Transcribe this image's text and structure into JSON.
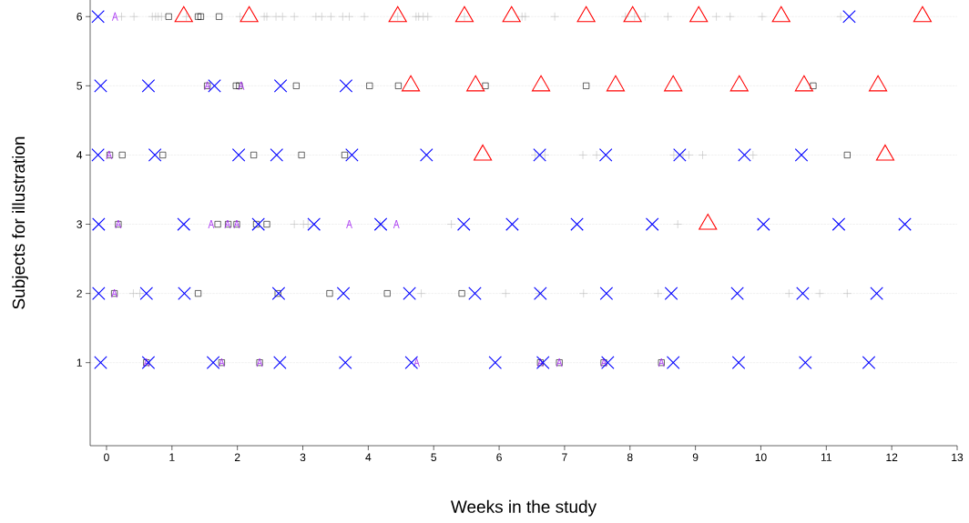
{
  "chart_data": {
    "type": "scatter",
    "xlabel": "Weeks in the study",
    "ylabel": "Subjects for illustration",
    "xlim": [
      -0.25,
      13
    ],
    "xticks": [
      0,
      1,
      2,
      3,
      4,
      5,
      6,
      7,
      8,
      9,
      10,
      11,
      12,
      13
    ],
    "ylim": [
      -0.2,
      6.24
    ],
    "yticks": [
      1,
      2,
      3,
      4,
      5,
      6
    ],
    "grid": "y",
    "series": [
      {
        "color": "#bebebe",
        "marker": "plus",
        "x": [
          0.23,
          0.42,
          0.7,
          0.75,
          0.79,
          0.84,
          1.22,
          2.04,
          2.41,
          2.45,
          2.59,
          2.69,
          2.87,
          3.2,
          3.29,
          3.43,
          3.61,
          3.71,
          3.94,
          4.45,
          4.73,
          4.77,
          4.84,
          4.91,
          5.47,
          6.35,
          6.4,
          6.85,
          7.93,
          8.07,
          8.23,
          8.58,
          9.32,
          9.53,
          10.02,
          11.22,
          6.55,
          6.7,
          7.28,
          7.49,
          8.67,
          8.81,
          8.9,
          9.11,
          9.88,
          2.87,
          3.01,
          3.08,
          4.18,
          5.27,
          8.73,
          0.41,
          0.51,
          4.81,
          6.1,
          6.61,
          7.29,
          8.43,
          10.43,
          10.9,
          11.32
        ],
        "values": [
          6,
          6,
          6,
          6,
          6,
          6,
          6,
          6,
          6,
          6,
          6,
          6,
          6,
          6,
          6,
          6,
          6,
          6,
          6,
          6,
          6,
          6,
          6,
          6,
          6,
          6,
          6,
          6,
          6,
          6,
          6,
          6,
          6,
          6,
          6,
          6,
          4,
          4,
          4,
          4,
          4,
          4,
          4,
          4,
          4,
          3,
          3,
          3,
          3,
          3,
          3,
          2,
          2,
          2,
          2,
          2,
          2,
          2,
          2,
          2,
          2
        ]
      },
      {
        "color": "#000000",
        "marker": "square",
        "x": [
          0.95,
          1.4,
          1.44,
          1.72,
          1.54,
          1.98,
          2.03,
          2.9,
          4.02,
          4.46,
          5.79,
          7.33,
          10.8,
          0.05,
          0.24,
          0.86,
          2.25,
          2.98,
          3.64,
          11.32,
          0.18,
          1.7,
          1.86,
          1.99,
          2.29,
          2.45,
          0.12,
          1.4,
          2.62,
          3.41,
          4.29,
          5.43,
          0.61,
          1.76,
          2.34,
          6.63,
          6.92,
          7.6,
          8.48
        ],
        "values": [
          6,
          6,
          6,
          6,
          5,
          5,
          5,
          5,
          5,
          5,
          5,
          5,
          5,
          4,
          4,
          4,
          4,
          4,
          4,
          4,
          3,
          3,
          3,
          3,
          3,
          3,
          2,
          2,
          2,
          2,
          2,
          2,
          1,
          1,
          1,
          1,
          1,
          1,
          1
        ]
      },
      {
        "color": "#a020f0",
        "x": [
          0.13,
          1.54,
          2.06,
          0.04,
          0.18,
          1.6,
          1.85,
          1.99,
          3.71,
          4.43,
          0.12,
          0.61,
          1.76,
          2.34,
          4.74,
          6.63,
          6.92,
          7.6,
          8.48
        ],
        "values": [
          6,
          5,
          5,
          4,
          3,
          3,
          3,
          3,
          3,
          3,
          2,
          1,
          1,
          1,
          1,
          1,
          1,
          1,
          1
        ]
      },
      {
        "color": "#ff0000",
        "marker": "triangle",
        "x": [
          1.18,
          2.18,
          4.45,
          5.47,
          6.19,
          7.33,
          8.04,
          9.05,
          10.31,
          12.47,
          4.65,
          5.64,
          6.64,
          7.78,
          8.66,
          9.67,
          10.66,
          11.79,
          5.75,
          11.9,
          9.19
        ],
        "values": [
          6,
          6,
          6,
          6,
          6,
          6,
          6,
          6,
          6,
          6,
          5,
          5,
          5,
          5,
          5,
          5,
          5,
          5,
          4,
          4,
          3
        ]
      },
      {
        "color": "#0000ff",
        "marker": "cross",
        "x": [
          -0.13,
          11.35,
          -0.09,
          0.64,
          1.65,
          2.66,
          3.66,
          -0.13,
          0.74,
          2.02,
          2.6,
          3.75,
          4.89,
          6.62,
          7.63,
          8.76,
          9.75,
          10.62,
          -0.12,
          1.18,
          2.32,
          3.17,
          4.19,
          5.46,
          6.2,
          7.19,
          8.34,
          10.04,
          11.19,
          12.2,
          -0.12,
          0.61,
          1.19,
          2.63,
          3.62,
          4.63,
          5.63,
          6.63,
          7.64,
          8.63,
          9.64,
          10.64,
          11.77,
          -0.09,
          0.64,
          1.63,
          2.65,
          3.65,
          4.66,
          5.94,
          6.67,
          7.66,
          8.66,
          9.66,
          10.68,
          11.65
        ],
        "values": [
          6,
          6,
          5,
          5,
          5,
          5,
          5,
          4,
          4,
          4,
          4,
          4,
          4,
          4,
          4,
          4,
          4,
          4,
          3,
          3,
          3,
          3,
          3,
          3,
          3,
          3,
          3,
          3,
          3,
          3,
          2,
          2,
          2,
          2,
          2,
          2,
          2,
          2,
          2,
          2,
          2,
          2,
          2,
          1,
          1,
          1,
          1,
          1,
          1,
          1,
          1,
          1,
          1,
          1,
          1,
          1
        ]
      }
    ]
  }
}
